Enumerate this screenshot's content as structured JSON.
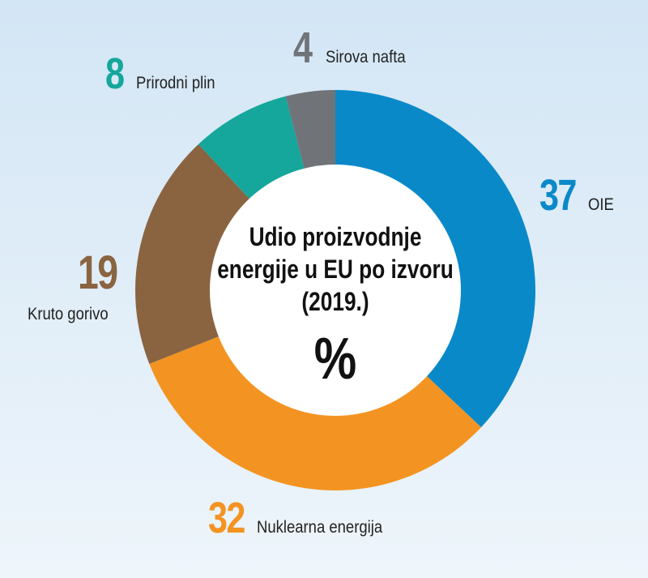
{
  "chart_data": {
    "type": "pie",
    "title": "Udio proizvodnje energije u EU po izvoru (2019.)",
    "unit": "%",
    "slices": [
      {
        "label": "OIE",
        "value": 37,
        "color": "#0a89c9"
      },
      {
        "label": "Nuklearna energija",
        "value": 32,
        "color": "#f39422"
      },
      {
        "label": "Kruto gorivo",
        "value": 19,
        "color": "#8a6440"
      },
      {
        "label": "Prirodni plin",
        "value": 8,
        "color": "#15a79b"
      },
      {
        "label": "Sirova nafta",
        "value": 4,
        "color": "#707479"
      }
    ]
  }
}
